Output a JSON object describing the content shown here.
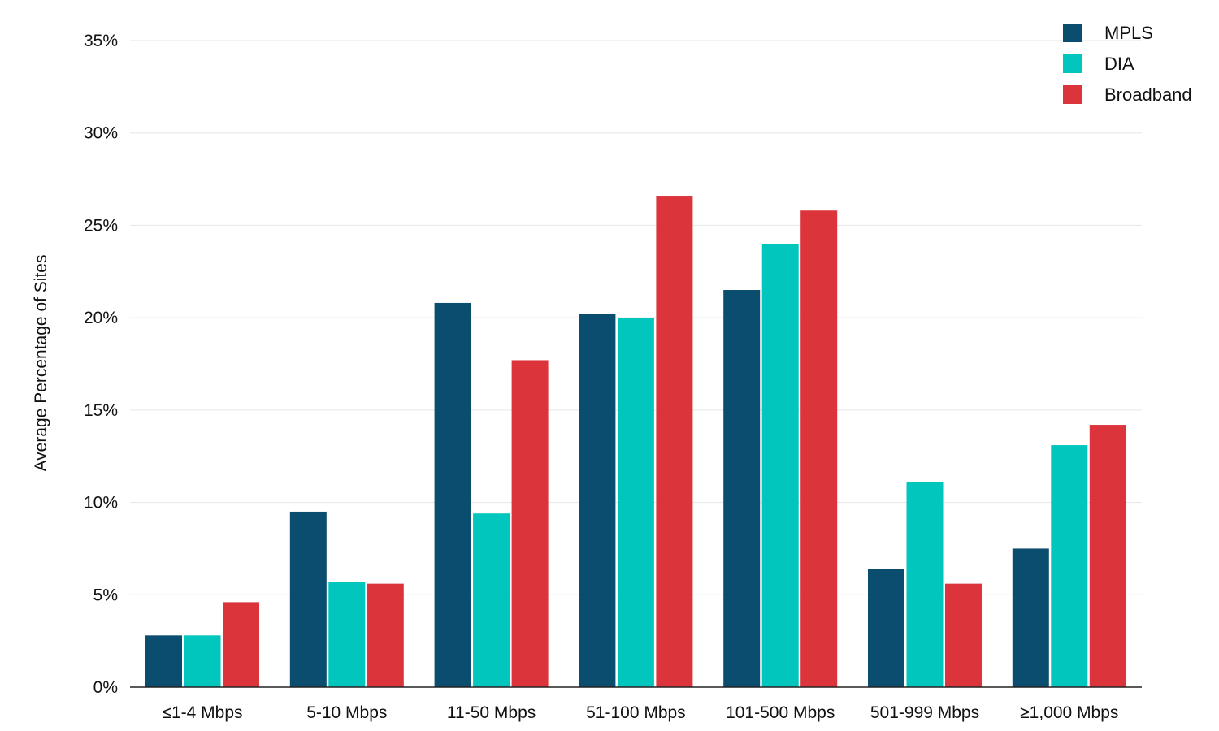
{
  "chart_data": {
    "type": "bar",
    "categories": [
      "≤1-4 Mbps",
      "5-10 Mbps",
      "11-50 Mbps",
      "51-100 Mbps",
      "101-500 Mbps",
      "501-999 Mbps",
      "≥1,000 Mbps"
    ],
    "series": [
      {
        "name": "MPLS",
        "color": "#0a4d6e",
        "values": [
          2.8,
          9.5,
          20.8,
          20.2,
          21.5,
          6.4,
          7.5
        ]
      },
      {
        "name": "DIA",
        "color": "#00c6bd",
        "values": [
          2.8,
          5.7,
          9.4,
          20.0,
          24.0,
          11.1,
          13.1
        ]
      },
      {
        "name": "Broadband",
        "color": "#dc343b",
        "values": [
          4.6,
          5.6,
          17.7,
          26.6,
          25.8,
          5.6,
          14.2
        ]
      }
    ],
    "title": "",
    "xlabel": "",
    "ylabel": "Average Percentage of Sites",
    "ylim": [
      0,
      35
    ],
    "yticks": [
      0,
      5,
      10,
      15,
      20,
      25,
      30,
      35
    ],
    "ytick_labels": [
      "0%",
      "5%",
      "10%",
      "15%",
      "20%",
      "25%",
      "30%",
      "35%"
    ],
    "grid": true,
    "legend_position": "top-right"
  }
}
